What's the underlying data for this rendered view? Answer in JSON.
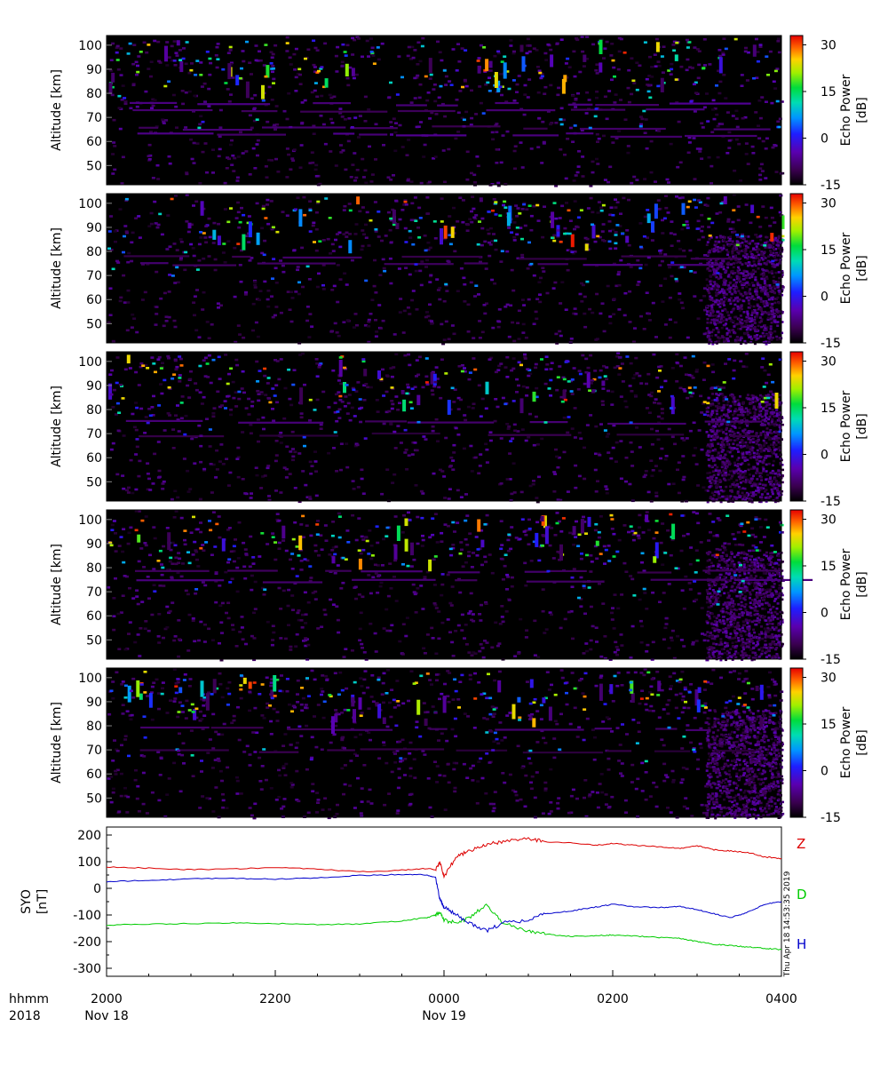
{
  "chart_data": [
    {
      "type": "heatmap",
      "panel": 1,
      "ylabel": "Altitude  [km]",
      "yticks": [
        50,
        60,
        70,
        80,
        90,
        100
      ],
      "ylim": [
        42,
        104
      ],
      "colorbar": {
        "label": "Echo Power",
        "unit": "[dB]",
        "ticks": [
          30,
          15,
          0,
          -15
        ],
        "range": [
          -15,
          33
        ]
      },
      "layers": [
        {
          "alt": 76,
          "power": -9
        },
        {
          "alt": 73,
          "power": -10
        },
        {
          "alt": 66,
          "power": -11
        },
        {
          "alt": 63,
          "power": -9
        }
      ]
    },
    {
      "type": "heatmap",
      "panel": 2,
      "ylabel": "Altitude  [km]",
      "yticks": [
        50,
        60,
        70,
        80,
        90,
        100
      ],
      "ylim": [
        42,
        104
      ],
      "colorbar": {
        "label": "Echo Power",
        "unit": "[dB]",
        "ticks": [
          30,
          15,
          0,
          -15
        ],
        "range": [
          -15,
          33
        ]
      },
      "layers": [
        {
          "alt": 75,
          "power": -10
        },
        {
          "alt": 78,
          "power": -11
        }
      ]
    },
    {
      "type": "heatmap",
      "panel": 3,
      "ylabel": "Altitude  [km]",
      "yticks": [
        50,
        60,
        70,
        80,
        90,
        100
      ],
      "ylim": [
        42,
        104
      ],
      "colorbar": {
        "label": "Echo Power",
        "unit": "[dB]",
        "ticks": [
          30,
          15,
          0,
          -15
        ],
        "range": [
          -15,
          33
        ]
      },
      "layers": [
        {
          "alt": 75,
          "power": -10
        },
        {
          "alt": 70,
          "power": -12
        }
      ]
    },
    {
      "type": "heatmap",
      "panel": 4,
      "ylabel": "Altitude  [km]",
      "yticks": [
        50,
        60,
        70,
        80,
        90,
        100
      ],
      "ylim": [
        42,
        104
      ],
      "colorbar": {
        "label": "Echo Power",
        "unit": "[dB]",
        "ticks": [
          30,
          15,
          0,
          -15
        ],
        "range": [
          -15,
          33
        ]
      },
      "layers": [
        {
          "alt": 75,
          "power": -10
        },
        {
          "alt": 79,
          "power": -11
        }
      ]
    },
    {
      "type": "heatmap",
      "panel": 5,
      "ylabel": "Altitude  [km]",
      "yticks": [
        50,
        60,
        70,
        80,
        90,
        100
      ],
      "ylim": [
        42,
        104
      ],
      "colorbar": {
        "label": "Echo Power",
        "unit": "[dB]",
        "ticks": [
          30,
          15,
          0,
          -15
        ],
        "range": [
          -15,
          33
        ]
      },
      "layers": [
        {
          "alt": 79,
          "power": -11
        },
        {
          "alt": 70,
          "power": -12
        }
      ]
    },
    {
      "type": "line",
      "panel": 6,
      "ylabel": "SYO",
      "yunit": "[nT]",
      "yticks": [
        200,
        100,
        0,
        -100,
        -200,
        -300
      ],
      "ylim": [
        -330,
        230
      ],
      "x_hours": [
        20.0,
        20.5,
        21.0,
        21.5,
        22.0,
        22.5,
        23.0,
        23.5,
        23.8,
        23.9,
        23.95,
        24.0,
        24.15,
        24.3,
        24.5,
        24.7,
        25.0,
        25.2,
        25.5,
        25.8,
        26.0,
        26.3,
        26.6,
        26.8,
        27.0,
        27.2,
        27.4,
        27.6,
        27.8,
        28.0
      ],
      "series": [
        {
          "name": "Z",
          "color": "#dd0000",
          "values": [
            80,
            76,
            70,
            73,
            78,
            72,
            62,
            68,
            75,
            70,
            100,
            45,
            120,
            140,
            165,
            175,
            185,
            175,
            170,
            162,
            168,
            160,
            155,
            150,
            160,
            145,
            140,
            135,
            118,
            112
          ]
        },
        {
          "name": "D",
          "color": "#00cc00",
          "values": [
            -138,
            -134,
            -132,
            -130,
            -132,
            -136,
            -134,
            -122,
            -110,
            -100,
            -90,
            -120,
            -130,
            -110,
            -60,
            -130,
            -160,
            -172,
            -180,
            -178,
            -175,
            -180,
            -185,
            -188,
            -200,
            -210,
            -215,
            -220,
            -225,
            -230
          ]
        },
        {
          "name": "H",
          "color": "#0000cc",
          "values": [
            25,
            30,
            36,
            38,
            34,
            40,
            48,
            52,
            50,
            40,
            -40,
            -70,
            -100,
            -130,
            -160,
            -130,
            -120,
            -95,
            -85,
            -70,
            -60,
            -70,
            -72,
            -68,
            -80,
            -95,
            -110,
            -90,
            -60,
            -50
          ]
        }
      ],
      "side_labels": [
        "Z",
        "D",
        "H"
      ],
      "stamp": "Thu Apr 18 14:53:35 2019"
    }
  ],
  "time_axis": {
    "row_labels": [
      "hhmm",
      "2018"
    ],
    "ticks": [
      {
        "hour": 20,
        "label": "2000"
      },
      {
        "hour": 22,
        "label": "2200"
      },
      {
        "hour": 24,
        "label": "0000"
      },
      {
        "hour": 26,
        "label": "0200"
      },
      {
        "hour": 28,
        "label": "0400"
      }
    ],
    "dates": [
      {
        "hour": 20,
        "label": "Nov 18"
      },
      {
        "hour": 24,
        "label": "Nov 19"
      }
    ]
  }
}
